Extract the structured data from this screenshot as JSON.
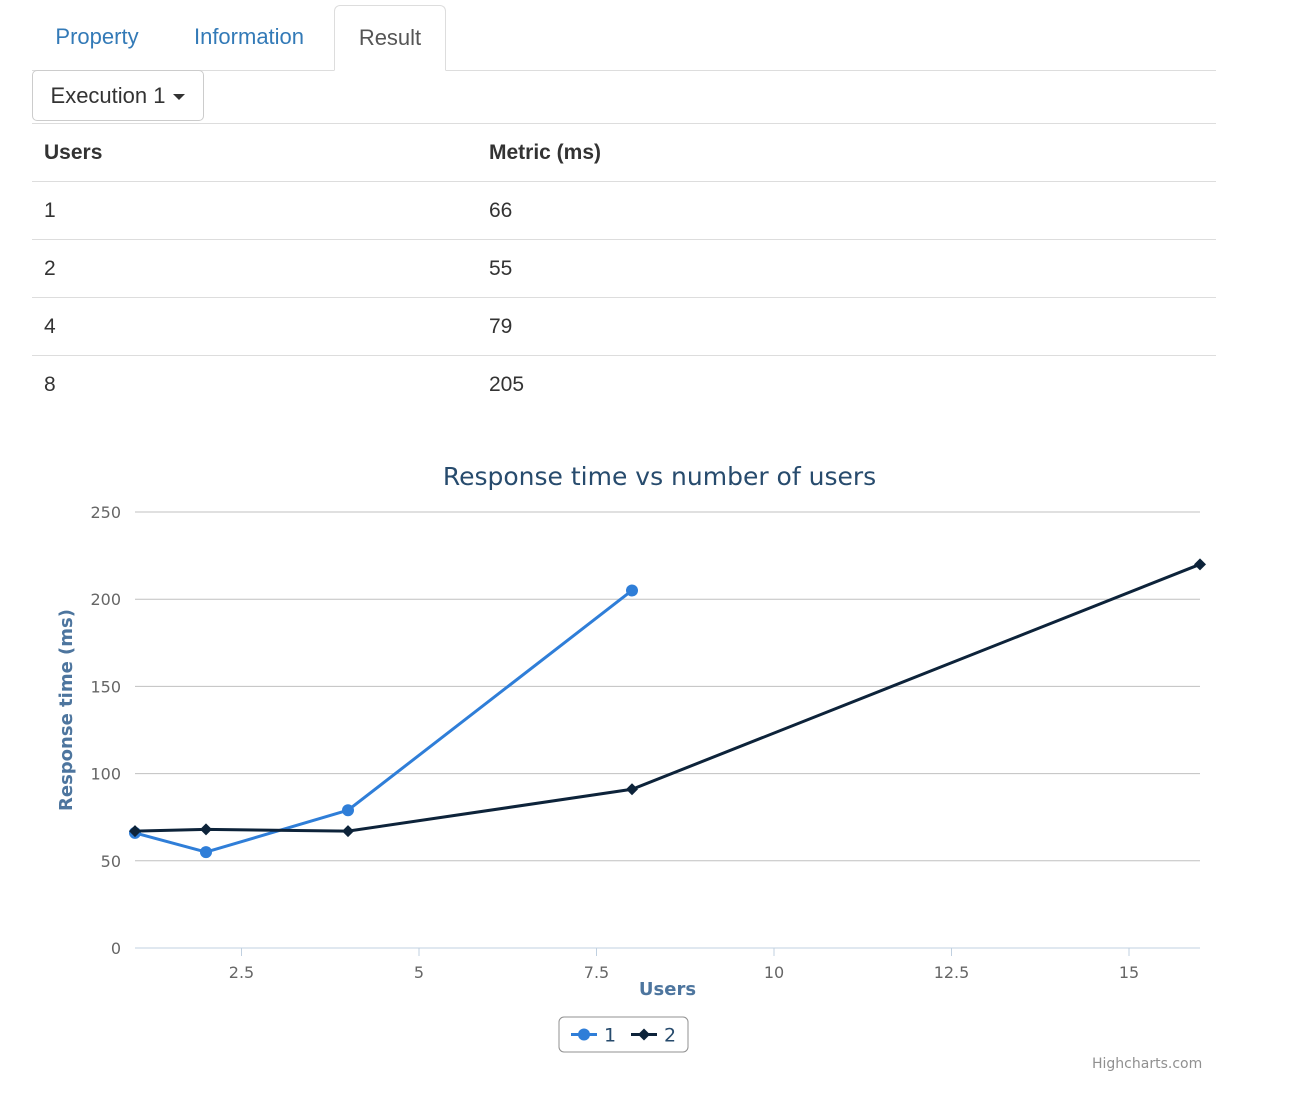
{
  "tabs": {
    "property": "Property",
    "information": "Information",
    "result": "Result"
  },
  "dropdown": {
    "label": "Execution 1"
  },
  "table": {
    "headers": [
      "Users",
      "Metric (ms)"
    ],
    "rows": [
      [
        "1",
        "66"
      ],
      [
        "2",
        "55"
      ],
      [
        "4",
        "79"
      ],
      [
        "8",
        "205"
      ]
    ]
  },
  "chart_data": {
    "type": "line",
    "title": "Response time vs number of users",
    "xlabel": "Users",
    "ylabel": "Response time (ms)",
    "xlim": [
      1,
      16
    ],
    "ylim": [
      0,
      250
    ],
    "xticks": [
      2.5,
      5,
      7.5,
      10,
      12.5,
      15
    ],
    "xtick_labels": [
      "2.5",
      "5",
      "7.5",
      "10",
      "12.5",
      "15"
    ],
    "yticks": [
      0,
      50,
      100,
      150,
      200,
      250
    ],
    "ytick_labels": [
      "0",
      "50",
      "100",
      "150",
      "200",
      "250"
    ],
    "grid": true,
    "legend_position": "bottom-center",
    "series": [
      {
        "name": "1",
        "color": "#2f7ed8",
        "marker": "circle",
        "x": [
          1,
          2,
          4,
          8
        ],
        "values": [
          66,
          55,
          79,
          205
        ]
      },
      {
        "name": "2",
        "color": "#0d233a",
        "marker": "diamond",
        "x": [
          1,
          2,
          4,
          8,
          16
        ],
        "values": [
          67,
          68,
          67,
          91,
          220
        ]
      }
    ],
    "credits": "Highcharts.com"
  }
}
